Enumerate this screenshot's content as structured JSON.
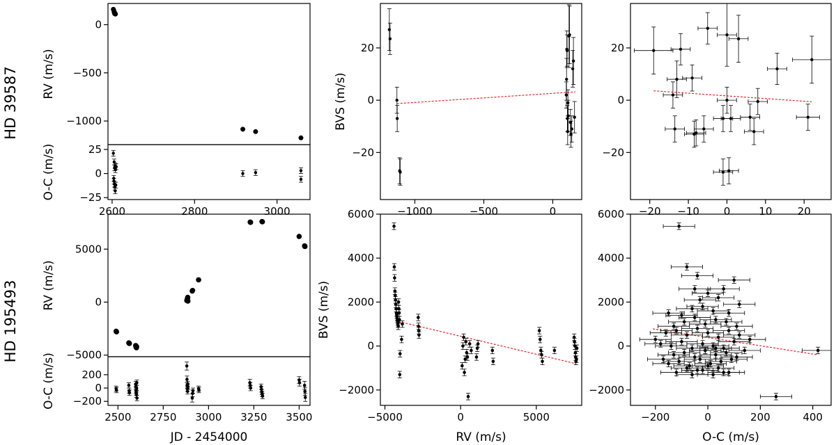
{
  "figure": {
    "rows": [
      {
        "title": "HD 39587"
      },
      {
        "title": "HD 195493"
      }
    ]
  },
  "chart_data": [
    {
      "id": "hd39587-rv",
      "type": "scatter",
      "title": "",
      "xlabel": "",
      "ylabel": "RV (m/s)",
      "xlim": [
        2590,
        3080
      ],
      "ylim": [
        -1245,
        220
      ],
      "yticks": [
        0,
        -500,
        -1000
      ],
      "xticks": [],
      "marker_size": 3.5,
      "series": [
        {
          "name": "RV",
          "x": [
            2603,
            2604,
            2605,
            2606,
            2607,
            2608,
            2917,
            2948,
            3058
          ],
          "y": [
            160,
            150,
            130,
            115,
            120,
            110,
            -1085,
            -1110,
            -1175
          ],
          "yerr": [
            5,
            5,
            5,
            5,
            5,
            5,
            5,
            5,
            5
          ]
        }
      ]
    },
    {
      "id": "hd39587-oc",
      "type": "scatter",
      "xlabel": "JD - 2454000",
      "ylabel": "O-C (m/s)",
      "xlim": [
        2590,
        3080
      ],
      "ylim": [
        -27,
        30
      ],
      "yticks": [
        25,
        0,
        -25
      ],
      "xticks": [
        2600,
        2800,
        3000
      ],
      "marker_size": 2.2,
      "series": [
        {
          "name": "O-C",
          "x": [
            2603,
            2604,
            2604.5,
            2605,
            2605.5,
            2606,
            2606.5,
            2607,
            2607.5,
            2608,
            2609,
            2610,
            2917,
            2948,
            3058,
            3058
          ],
          "y": [
            21,
            -5,
            -8,
            12,
            -11,
            6,
            -14,
            8,
            -18,
            4,
            -12,
            7,
            0,
            1,
            3,
            -6
          ],
          "yerr": [
            3,
            3,
            3,
            3,
            3,
            3,
            3,
            3,
            3,
            3,
            3,
            3,
            3,
            3,
            3,
            3
          ]
        }
      ]
    },
    {
      "id": "hd39587-bvs-rv",
      "type": "scatter",
      "xlabel": "",
      "ylabel": "BVS (m/s)",
      "xlim": [
        -1250,
        210
      ],
      "ylim": [
        -38,
        37
      ],
      "xticks": [
        -1000,
        -500,
        0
      ],
      "yticks": [
        20,
        0,
        -20
      ],
      "marker_size": 2.2,
      "fit": {
        "x": [
          -1130,
          165
        ],
        "y": [
          -1.3,
          3.2
        ],
        "color": "#e8262d"
      },
      "series": [
        {
          "name": "BVS",
          "x": [
            -1185,
            -1180,
            -1130,
            -1128,
            -1110,
            -1106,
            98,
            100,
            102,
            104,
            106,
            108,
            110,
            112,
            118,
            122,
            128,
            132,
            138,
            145,
            150,
            158
          ],
          "y": [
            27,
            23.5,
            0,
            -7,
            -27,
            -27.5,
            2,
            8,
            19.5,
            19,
            -7,
            -12,
            -1,
            -6,
            24.5,
            25,
            -8.5,
            -13,
            -11,
            12,
            15,
            -6.5
          ],
          "yerr": [
            8,
            6,
            5,
            5,
            5,
            5,
            5,
            8,
            7,
            6,
            5,
            5,
            5,
            6,
            12,
            11,
            5,
            5,
            5,
            7,
            9,
            6
          ]
        }
      ]
    },
    {
      "id": "hd39587-bvs-oc",
      "type": "scatter",
      "xlabel": "",
      "ylabel": "",
      "xlim": [
        -25,
        27
      ],
      "ylim": [
        -38,
        37
      ],
      "xticks": [
        -20,
        -10,
        0,
        10,
        20
      ],
      "yticks": [
        20,
        0,
        -20
      ],
      "marker_size": 2.2,
      "fit": {
        "x": [
          -19,
          22
        ],
        "y": [
          3.6,
          -0.6
        ],
        "color": "#e8262d"
      },
      "series": [
        {
          "name": "BVS",
          "x": [
            -19,
            -14,
            -13.5,
            -13,
            -12,
            -9,
            -8.5,
            -8,
            -6,
            -5,
            -1,
            -1,
            0,
            0,
            0.5,
            1,
            3,
            6,
            7,
            8,
            13,
            21,
            22
          ],
          "y": [
            19,
            2,
            -11,
            8,
            19.5,
            8.5,
            -13,
            -12.5,
            -11,
            27.5,
            -7,
            -27.5,
            25,
            0,
            -27,
            -7,
            23.5,
            -6.5,
            -12,
            -0.5,
            12,
            -6.5,
            15.5
          ],
          "xerr": [
            5,
            2.5,
            2.5,
            2.5,
            2.5,
            2.5,
            2.5,
            2.5,
            2.5,
            2.5,
            2.5,
            2.5,
            2.5,
            2.5,
            2.5,
            2.5,
            2.5,
            2.5,
            2.5,
            2.5,
            2.5,
            3,
            5
          ],
          "yerr": [
            9,
            5,
            5,
            7,
            6,
            5,
            5,
            5,
            5,
            6,
            5,
            5,
            12,
            5,
            5,
            5,
            9,
            5,
            5,
            5,
            6,
            5,
            9
          ]
        }
      ]
    },
    {
      "id": "hd195493-rv",
      "type": "scatter",
      "xlabel": "",
      "ylabel": "RV (m/s)",
      "xlim": [
        2445,
        3560
      ],
      "ylim": [
        -5150,
        8300
      ],
      "yticks": [
        5000,
        0,
        -5000
      ],
      "xticks": [],
      "marker_size": 3.8,
      "series": [
        {
          "name": "RV",
          "x": [
            2490,
            2492,
            2560,
            2563,
            2598,
            2600,
            2602,
            2603,
            2880,
            2882,
            2884,
            2885,
            2886,
            2910,
            2912,
            2945,
            3230,
            3232,
            3295,
            3297,
            3500,
            3530,
            3532
          ],
          "y": [
            -2750,
            -2800,
            -3850,
            -3900,
            -4100,
            -4250,
            -4300,
            -4200,
            150,
            250,
            350,
            450,
            100,
            1050,
            1100,
            2100,
            7550,
            7530,
            7600,
            7580,
            6200,
            5300,
            5250
          ],
          "yerr": [
            80,
            80,
            80,
            80,
            80,
            80,
            80,
            80,
            80,
            80,
            80,
            80,
            80,
            80,
            80,
            80,
            80,
            80,
            80,
            80,
            80,
            150,
            150
          ]
        }
      ]
    },
    {
      "id": "hd195493-oc",
      "type": "scatter",
      "xlabel": "JD - 2454000",
      "ylabel": "O-C (m/s)",
      "xlim": [
        2445,
        3560
      ],
      "ylim": [
        -260,
        470
      ],
      "yticks": [
        200,
        0,
        -200
      ],
      "xticks": [
        2500,
        2750,
        3000,
        3250,
        3500
      ],
      "marker_size": 2.3,
      "series": [
        {
          "name": "O-C",
          "x": [
            2490,
            2492,
            2560,
            2562,
            2563,
            2598,
            2599,
            2600,
            2601,
            2602,
            2603,
            2604,
            2605,
            2880,
            2881,
            2882,
            2883,
            2884,
            2885,
            2886,
            2910,
            2912,
            2914,
            2945,
            2947,
            3228,
            3230,
            3232,
            3290,
            3292,
            3294,
            3296,
            3298,
            3500,
            3502,
            3530,
            3532,
            3534
          ],
          "y": [
            -10,
            -30,
            40,
            -40,
            -70,
            60,
            20,
            -40,
            -70,
            -100,
            0,
            80,
            -150,
            330,
            130,
            40,
            -10,
            -50,
            60,
            20,
            -150,
            -80,
            -40,
            -10,
            -30,
            80,
            40,
            0,
            20,
            -20,
            -60,
            -90,
            -120,
            120,
            80,
            40,
            -50,
            -140
          ],
          "yerr": [
            40,
            40,
            40,
            40,
            40,
            40,
            40,
            40,
            40,
            40,
            40,
            40,
            40,
            60,
            50,
            40,
            40,
            40,
            40,
            40,
            60,
            50,
            40,
            40,
            40,
            50,
            40,
            40,
            40,
            40,
            40,
            40,
            40,
            50,
            50,
            60,
            60,
            60
          ]
        }
      ]
    },
    {
      "id": "hd195493-bvs-rv",
      "type": "scatter",
      "xlabel": "RV (m/s)",
      "ylabel": "BVS (m/s)",
      "xlim": [
        -5300,
        8000
      ],
      "ylim": [
        -2700,
        6000
      ],
      "xticks": [
        -5000,
        0,
        5000
      ],
      "yticks": [
        6000,
        4000,
        2000,
        0,
        -2000
      ],
      "marker_size": 2.3,
      "fit": {
        "x": [
          -4300,
          7600
        ],
        "y": [
          1150,
          -800
        ],
        "color": "#e8262d"
      },
      "series": [
        {
          "name": "BVS",
          "x": [
            -4400,
            -4380,
            -4360,
            -4340,
            -4320,
            -4300,
            -4280,
            -4260,
            -4240,
            -4220,
            -4200,
            -4180,
            -4160,
            -4140,
            -4120,
            -4100,
            -4080,
            -4060,
            -4040,
            -4020,
            -4000,
            -3900,
            -3850,
            -2800,
            -2780,
            -2760,
            -2750,
            100,
            150,
            200,
            250,
            300,
            350,
            400,
            450,
            500,
            600,
            700,
            1050,
            1100,
            1150,
            2100,
            2150,
            5200,
            5250,
            5300,
            5350,
            5400,
            6200,
            7500,
            7520,
            7550,
            7580,
            7600,
            7620,
            7650,
            7680
          ],
          "y": [
            5450,
            3600,
            3100,
            2500,
            2300,
            2100,
            1900,
            1700,
            1500,
            1400,
            1300,
            1200,
            1100,
            1000,
            900,
            2000,
            1700,
            1500,
            1200,
            -1300,
            -350,
            300,
            1000,
            1300,
            900,
            700,
            500,
            -900,
            0,
            400,
            -1200,
            -600,
            200,
            -300,
            -500,
            -2300,
            100,
            -200,
            -500,
            -100,
            100,
            -200,
            -700,
            700,
            300,
            -200,
            -400,
            -700,
            -200,
            400,
            200,
            0,
            -300,
            -500,
            -700,
            -600,
            -100
          ],
          "yerr": [
            150,
            150,
            150,
            150,
            150,
            150,
            150,
            150,
            150,
            150,
            150,
            150,
            150,
            150,
            150,
            150,
            150,
            150,
            150,
            150,
            150,
            150,
            150,
            150,
            150,
            150,
            150,
            150,
            150,
            150,
            150,
            150,
            150,
            150,
            150,
            150,
            150,
            150,
            150,
            150,
            150,
            150,
            150,
            150,
            150,
            150,
            150,
            150,
            150,
            150,
            150,
            150,
            150,
            150,
            150,
            150,
            150
          ]
        }
      ]
    },
    {
      "id": "hd195493-bvs-oc",
      "type": "scatter",
      "xlabel": "O-C (m/s)",
      "ylabel": "",
      "xlim": [
        -295,
        470
      ],
      "ylim": [
        -2700,
        6000
      ],
      "xticks": [
        -200,
        0,
        200,
        400
      ],
      "yticks": [
        6000,
        4000,
        2000,
        0,
        -2000
      ],
      "marker_size": 2.3,
      "fit": {
        "x": [
          -210,
          420
        ],
        "y": [
          780,
          -400
        ],
        "color": "#e8262d"
      },
      "series": [
        {
          "name": "BVS",
          "x": [
            -110,
            -80,
            -40,
            100,
            -50,
            0,
            60,
            -30,
            40,
            120,
            -150,
            -100,
            -60,
            -20,
            20,
            80,
            -130,
            -90,
            -50,
            -10,
            30,
            70,
            110,
            -200,
            -160,
            -120,
            -80,
            -40,
            0,
            40,
            80,
            120,
            160,
            -180,
            -140,
            -100,
            -60,
            -20,
            20,
            60,
            100,
            140,
            -170,
            -130,
            -90,
            -50,
            -10,
            30,
            70,
            110,
            -150,
            -110,
            -70,
            -30,
            10,
            50,
            90,
            -120,
            -80,
            -40,
            0,
            40,
            80,
            -60,
            -20,
            20,
            60,
            260,
            420,
            -10,
            30
          ],
          "y": [
            5450,
            3600,
            3200,
            3000,
            2600,
            2400,
            2600,
            2100,
            2200,
            1900,
            1500,
            1400,
            1700,
            1800,
            1600,
            1500,
            900,
            1100,
            1300,
            1000,
            1200,
            1100,
            900,
            300,
            600,
            700,
            500,
            800,
            600,
            400,
            700,
            500,
            300,
            100,
            0,
            200,
            -100,
            100,
            0,
            -100,
            200,
            -200,
            -600,
            -400,
            -300,
            -500,
            -200,
            -400,
            -300,
            -500,
            -800,
            -700,
            -900,
            -600,
            -800,
            -700,
            -600,
            -1200,
            -1000,
            -1100,
            -900,
            -1000,
            -1200,
            -1300,
            -1100,
            -1300,
            -1200,
            -2300,
            -200,
            -200,
            -100
          ],
          "xerr": [
            60,
            60,
            60,
            60,
            60,
            60,
            60,
            60,
            60,
            60,
            60,
            60,
            60,
            60,
            60,
            60,
            60,
            60,
            60,
            60,
            60,
            60,
            60,
            60,
            60,
            60,
            60,
            60,
            60,
            60,
            60,
            60,
            60,
            60,
            60,
            60,
            60,
            60,
            60,
            60,
            60,
            60,
            60,
            60,
            60,
            60,
            60,
            60,
            60,
            60,
            60,
            60,
            60,
            60,
            60,
            60,
            60,
            60,
            60,
            60,
            60,
            60,
            60,
            60,
            60,
            60,
            60,
            60,
            60,
            60,
            60
          ],
          "yerr": [
            150,
            150,
            150,
            150,
            150,
            150,
            150,
            150,
            150,
            150,
            150,
            150,
            150,
            150,
            150,
            150,
            150,
            150,
            150,
            150,
            150,
            150,
            150,
            150,
            150,
            150,
            150,
            150,
            150,
            150,
            150,
            150,
            150,
            150,
            150,
            150,
            150,
            150,
            150,
            150,
            150,
            150,
            150,
            150,
            150,
            150,
            150,
            150,
            150,
            150,
            150,
            150,
            150,
            150,
            150,
            150,
            150,
            150,
            150,
            150,
            150,
            150,
            150,
            150,
            150,
            150,
            150,
            150,
            150,
            150,
            150
          ]
        }
      ]
    }
  ]
}
